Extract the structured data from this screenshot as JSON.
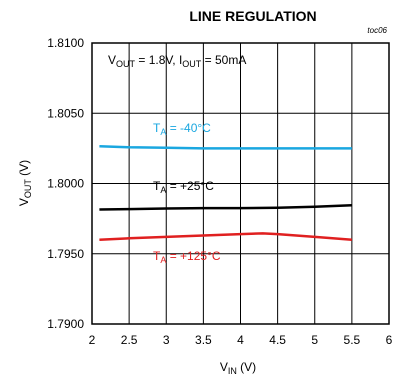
{
  "chart_data": {
    "type": "line",
    "title": "LINE REGULATION",
    "figure_id": "toc06",
    "conditions": {
      "vout_sym": "V",
      "vout_sub": "OUT",
      "vout_val": " = 1.8V, ",
      "iout_sym": "I",
      "iout_sub": "OUT",
      "iout_val": " = 50mA"
    },
    "xlabel": {
      "sym": "V",
      "sub": "IN",
      "unit": " (V)"
    },
    "ylabel": {
      "sym": "V",
      "sub": "OUT",
      "unit": " (V)"
    },
    "xlim": [
      2,
      6
    ],
    "ylim": [
      1.79,
      1.81
    ],
    "x_ticks": [
      "2",
      "2.5",
      "3",
      "3.5",
      "4",
      "4.5",
      "5",
      "5.5",
      "6"
    ],
    "y_ticks": [
      "1.8100",
      "1.8050",
      "1.8000",
      "1.7950",
      "1.7900"
    ],
    "grid": true,
    "series": [
      {
        "label": "TA = -40°C",
        "label_sym": "T",
        "label_sub": "A",
        "label_val": " = -40°C",
        "color": "#1aa7e0",
        "x": [
          2.1,
          2.5,
          3.0,
          3.5,
          4.0,
          4.5,
          5.0,
          5.5
        ],
        "y": [
          1.80265,
          1.80258,
          1.80255,
          1.8025,
          1.8025,
          1.8025,
          1.8025,
          1.8025
        ]
      },
      {
        "label": "TA = +25°C",
        "label_sym": "T",
        "label_sub": "A",
        "label_val": " = +25°C",
        "color": "#000000",
        "x": [
          2.1,
          2.5,
          3.0,
          3.5,
          4.0,
          4.5,
          5.0,
          5.5
        ],
        "y": [
          1.79815,
          1.79818,
          1.79822,
          1.79825,
          1.79825,
          1.79828,
          1.79835,
          1.79845
        ]
      },
      {
        "label": "TA = +125°C",
        "label_sym": "T",
        "label_sub": "A",
        "label_val": " = +125°C",
        "color": "#e02020",
        "x": [
          2.1,
          2.5,
          3.0,
          3.5,
          4.0,
          4.3,
          4.5,
          5.0,
          5.5
        ],
        "y": [
          1.796,
          1.7961,
          1.7962,
          1.7963,
          1.7964,
          1.79645,
          1.7964,
          1.7962,
          1.796
        ]
      }
    ]
  }
}
